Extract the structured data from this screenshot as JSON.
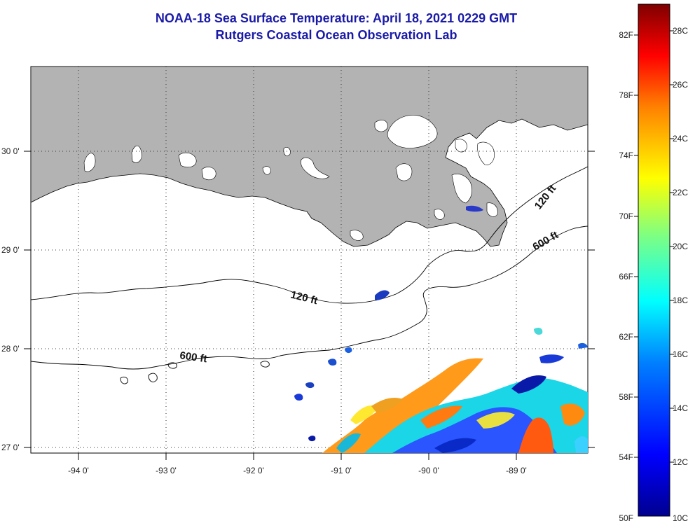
{
  "header": {
    "title": "NOAA-18 Sea Surface Temperature:  April 18, 2021 0229 GMT",
    "subtitle": "Rutgers Coastal Ocean Observation Lab"
  },
  "map": {
    "lon_labels": [
      "-94 0'",
      "-93 0'",
      "-92 0'",
      "-91 0'",
      "-90 0'",
      "-89 0'"
    ],
    "lat_labels": [
      "30 0'",
      "29 0'",
      "28 0'",
      "27 0'"
    ],
    "contour_labels": [
      "120 ft",
      "120 ft",
      "600 ft",
      "600 ft"
    ],
    "land_color": "#b3b3b3",
    "grid": "dotted"
  },
  "colorbar": {
    "f_labels": [
      "82F",
      "78F",
      "74F",
      "70F",
      "66F",
      "62F",
      "58F",
      "54F",
      "50F"
    ],
    "c_labels": [
      "28C",
      "26C",
      "24C",
      "22C",
      "20C",
      "18C",
      "16C",
      "14C",
      "12C",
      "10C"
    ],
    "colors": [
      "#7f0000",
      "#ff0000",
      "#ff8000",
      "#ffff00",
      "#80ff80",
      "#00ffff",
      "#0080ff",
      "#0000ff",
      "#00008f"
    ]
  }
}
